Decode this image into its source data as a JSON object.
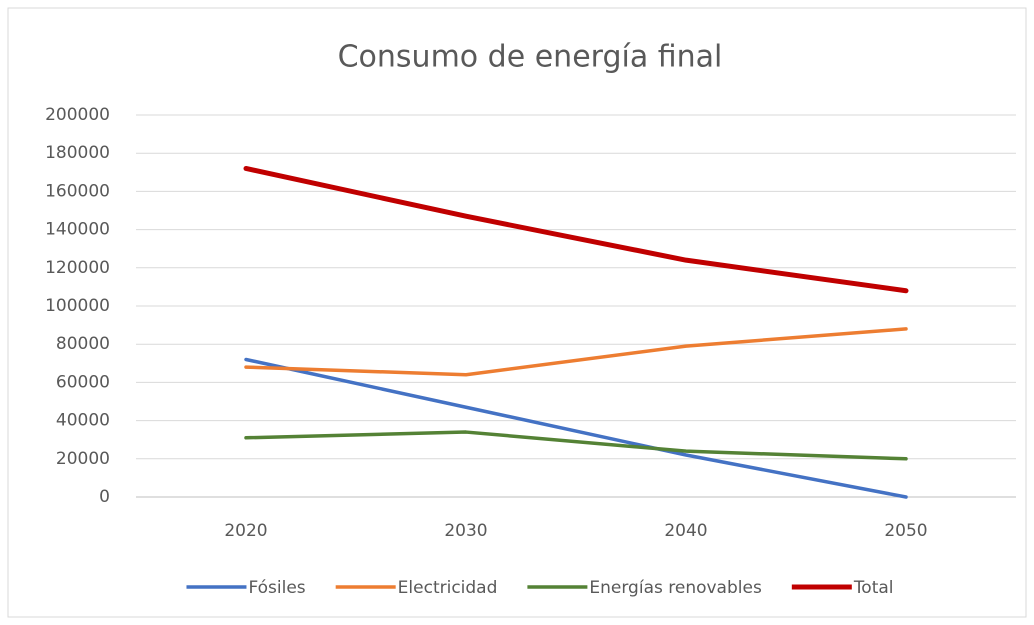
{
  "chart_data": {
    "type": "line",
    "title": "Consumo de energía final",
    "categories": [
      "2020",
      "2030",
      "2040",
      "2050"
    ],
    "series": [
      {
        "name": "Fósiles",
        "color": "#4472c4",
        "values": [
          72000,
          47000,
          22000,
          0
        ]
      },
      {
        "name": "Electricidad",
        "color": "#ed7d31",
        "values": [
          68000,
          64000,
          79000,
          88000
        ]
      },
      {
        "name": "Energías renovables",
        "color": "#548235",
        "values": [
          31000,
          34000,
          24000,
          20000
        ]
      },
      {
        "name": "Total",
        "color": "#c00000",
        "values": [
          172000,
          147000,
          124000,
          108000
        ]
      }
    ],
    "ylim": [
      0,
      200000
    ],
    "yticks": [
      0,
      20000,
      40000,
      60000,
      80000,
      100000,
      120000,
      140000,
      160000,
      180000,
      200000
    ],
    "grid": true,
    "legend": "bottom"
  }
}
